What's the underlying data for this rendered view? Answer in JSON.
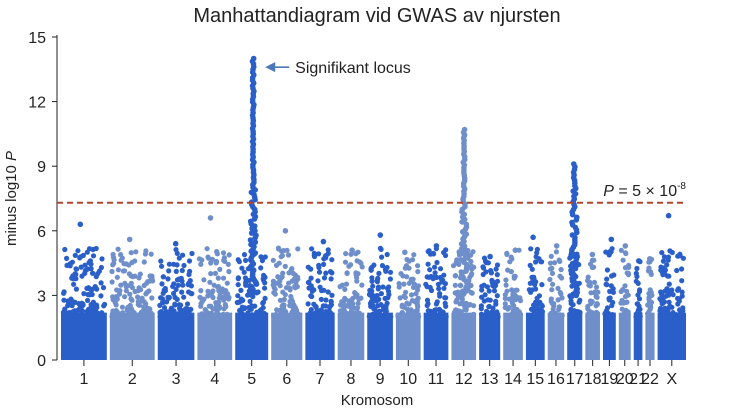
{
  "chart_data": {
    "type": "scatter",
    "title": "Manhattandiagram vid GWAS av njursten",
    "xlabel": "Kromosom",
    "ylabel_prefix": "minus log10 ",
    "ylabel_italic": "P",
    "ylim": [
      0,
      15
    ],
    "yticks": [
      0,
      3,
      6,
      9,
      12,
      15
    ],
    "grid": false,
    "threshold": {
      "value": 7.3,
      "label_italic": "P",
      "label_rest": " = 5 × 10",
      "label_exp": "-8",
      "color": "#b5442c"
    },
    "annotation": {
      "text": "Signifikant locus",
      "chromosome": "5",
      "y": 13.6
    },
    "colors": [
      "#2a5fc9",
      "#6f8fcb"
    ],
    "chromosomes": [
      {
        "label": "1",
        "max": 6.3
      },
      {
        "label": "2",
        "max": 5.6
      },
      {
        "label": "3",
        "max": 5.4
      },
      {
        "label": "4",
        "max": 6.6
      },
      {
        "label": "5",
        "max": 14.0
      },
      {
        "label": "6",
        "max": 6.0
      },
      {
        "label": "7",
        "max": 5.5
      },
      {
        "label": "8",
        "max": 5.1
      },
      {
        "label": "9",
        "max": 5.8
      },
      {
        "label": "10",
        "max": 5.0
      },
      {
        "label": "11",
        "max": 5.3
      },
      {
        "label": "12",
        "max": 10.7
      },
      {
        "label": "13",
        "max": 4.8
      },
      {
        "label": "14",
        "max": 5.1
      },
      {
        "label": "15",
        "max": 5.7
      },
      {
        "label": "16",
        "max": 5.3
      },
      {
        "label": "17",
        "max": 9.1
      },
      {
        "label": "18",
        "max": 4.9
      },
      {
        "label": "19",
        "max": 5.6
      },
      {
        "label": "20",
        "max": 5.3
      },
      {
        "label": "21",
        "max": 4.6
      },
      {
        "label": "22",
        "max": 4.7
      },
      {
        "label": "X",
        "max": 6.7
      }
    ]
  }
}
